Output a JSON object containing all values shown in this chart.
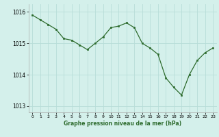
{
  "x": [
    0,
    1,
    2,
    3,
    4,
    5,
    6,
    7,
    8,
    9,
    10,
    11,
    12,
    13,
    14,
    15,
    16,
    17,
    18,
    19,
    20,
    21,
    22,
    23
  ],
  "y": [
    1015.9,
    1015.75,
    1015.6,
    1015.45,
    1015.15,
    1015.1,
    1014.95,
    1014.8,
    1015.0,
    1015.2,
    1015.5,
    1015.55,
    1015.65,
    1015.5,
    1015.0,
    1014.85,
    1014.65,
    1013.9,
    1013.6,
    1013.35,
    1014.0,
    1014.45,
    1014.7,
    1014.85
  ],
  "line_color": "#2d6b2d",
  "marker_color": "#2d6b2d",
  "bg_color": "#d4f0eb",
  "grid_color": "#b8ddd8",
  "xlabel": "Graphe pression niveau de la mer (hPa)",
  "ylim": [
    1012.8,
    1016.25
  ],
  "yticks": [
    1013,
    1014,
    1015,
    1016
  ],
  "xlim": [
    -0.5,
    23.5
  ],
  "xticks": [
    0,
    1,
    2,
    3,
    4,
    5,
    6,
    7,
    8,
    9,
    10,
    11,
    12,
    13,
    14,
    15,
    16,
    17,
    18,
    19,
    20,
    21,
    22,
    23
  ]
}
